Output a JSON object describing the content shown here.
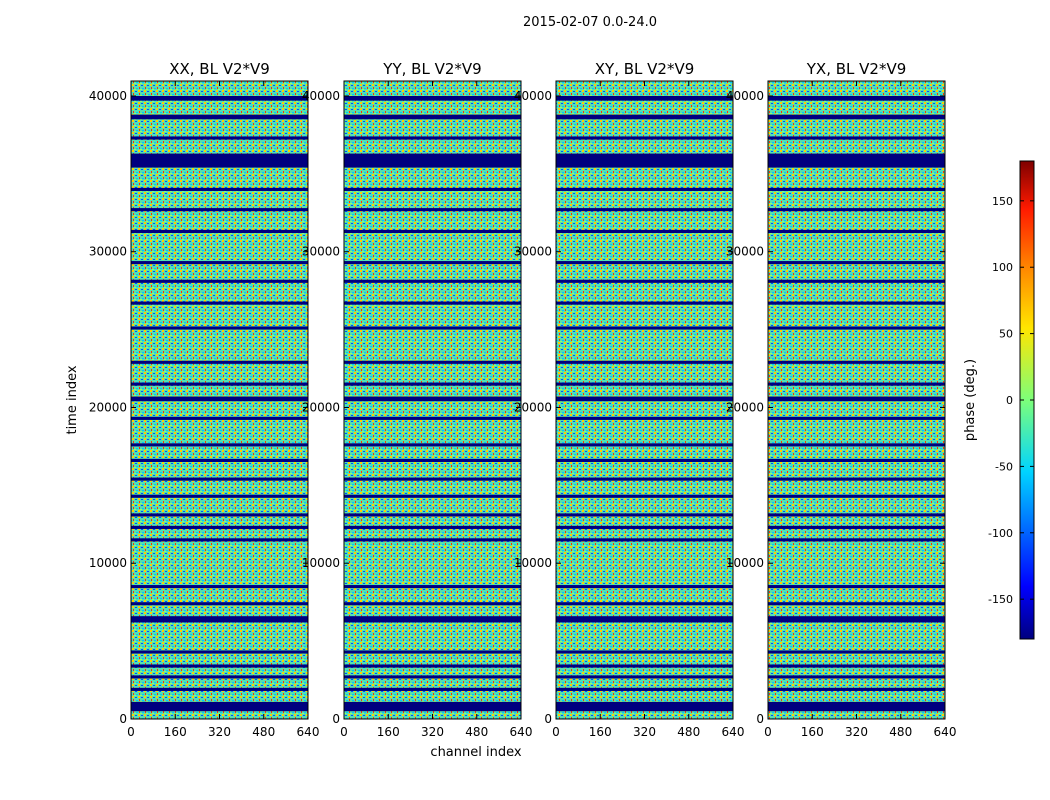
{
  "figure": {
    "suptitle": "2015-02-07 0.0-24.0"
  },
  "chart_data": {
    "type": "heatmap",
    "panels": [
      {
        "title": "XX, BL V2*V9"
      },
      {
        "title": "YY, BL V2*V9"
      },
      {
        "title": "XY, BL V2*V9"
      },
      {
        "title": "YX, BL V2*V9"
      }
    ],
    "xlabel": "channel index",
    "ylabel": "time index",
    "xlim": [
      0,
      640
    ],
    "ylim": [
      0,
      40960
    ],
    "xticks": [
      0,
      160,
      320,
      480,
      640
    ],
    "yticks": [
      0,
      10000,
      20000,
      30000,
      40000
    ],
    "colorbar": {
      "label": "phase (deg.)",
      "range": [
        -180,
        180
      ],
      "ticks": [
        -150,
        -100,
        -50,
        0,
        50,
        100,
        150
      ],
      "colormap": "jet"
    },
    "flagged_rows_approx": [
      [
        500,
        1100
      ],
      [
        1800,
        2000
      ],
      [
        2600,
        2800
      ],
      [
        3300,
        3500
      ],
      [
        4200,
        4400
      ],
      [
        6200,
        6600
      ],
      [
        7300,
        7500
      ],
      [
        8400,
        8600
      ],
      [
        11400,
        11600
      ],
      [
        12200,
        12400
      ],
      [
        13000,
        13200
      ],
      [
        14200,
        14400
      ],
      [
        15300,
        15500
      ],
      [
        16500,
        16700
      ],
      [
        17500,
        17700
      ],
      [
        19200,
        19400
      ],
      [
        20400,
        20700
      ],
      [
        21400,
        21600
      ],
      [
        22800,
        23000
      ],
      [
        25000,
        25200
      ],
      [
        26600,
        26800
      ],
      [
        28000,
        28200
      ],
      [
        29200,
        29400
      ],
      [
        31200,
        31400
      ],
      [
        32600,
        32800
      ],
      [
        33900,
        34100
      ],
      [
        35400,
        36300
      ],
      [
        37200,
        37400
      ],
      [
        38500,
        38800
      ],
      [
        39700,
        40000
      ]
    ]
  },
  "colors": {
    "flagged": "#00007f",
    "colormap_stops": [
      "#00007f",
      "#0000ff",
      "#0080ff",
      "#00ffff",
      "#80ff80",
      "#ffff00",
      "#ff8000",
      "#ff0000",
      "#7f0000"
    ]
  }
}
